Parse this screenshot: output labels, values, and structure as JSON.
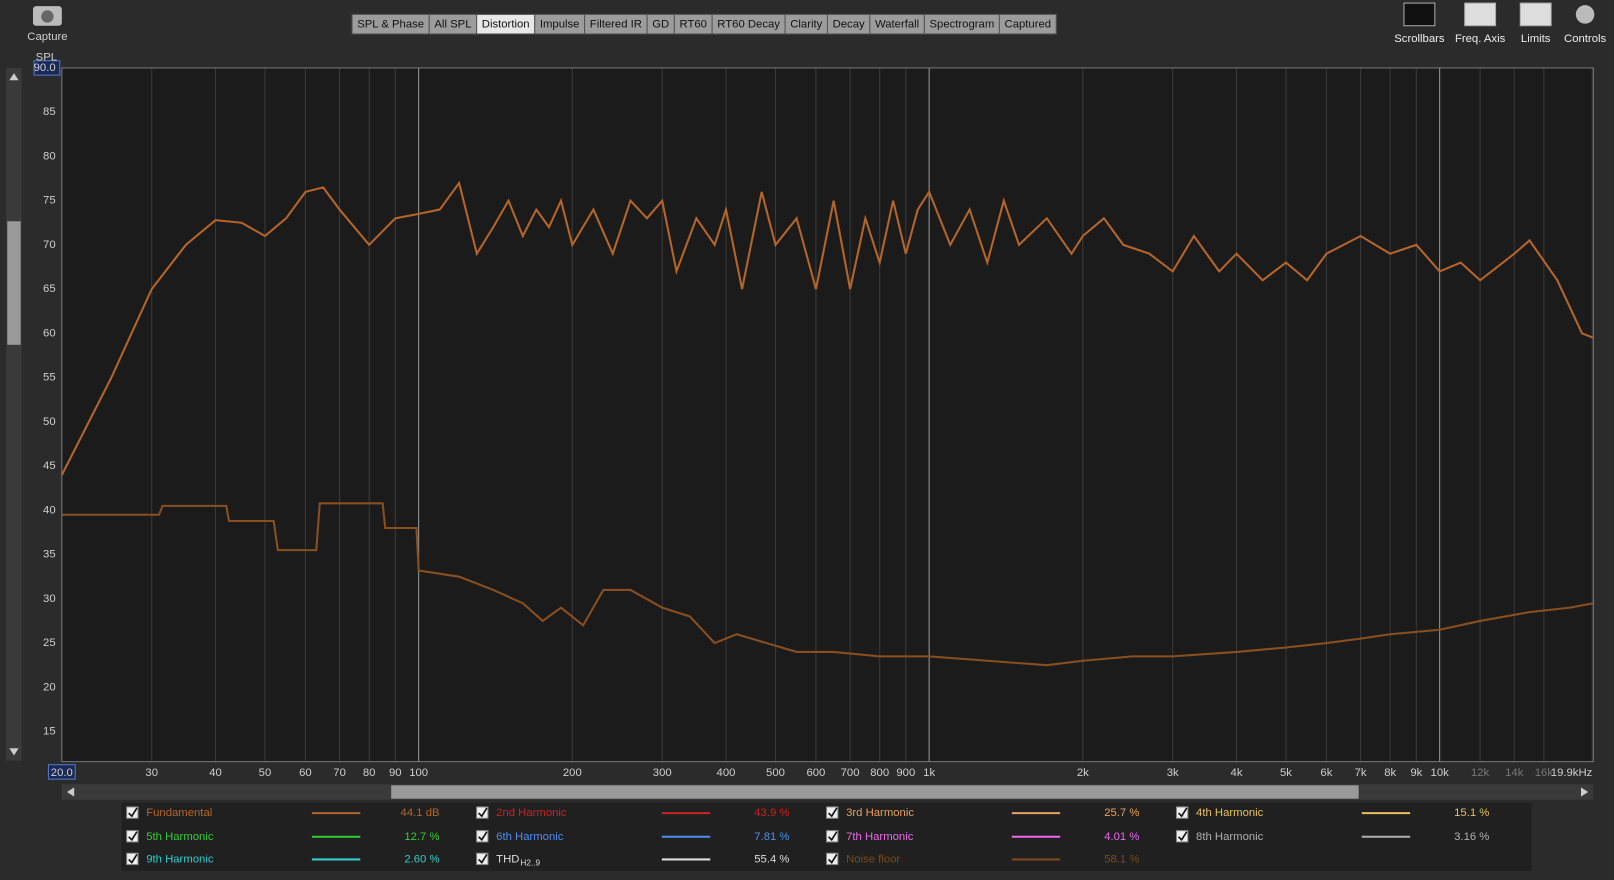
{
  "capture_label": "Capture",
  "tabs": [
    "SPL & Phase",
    "All SPL",
    "Distortion",
    "Impulse",
    "Filtered IR",
    "GD",
    "RT60",
    "RT60 Decay",
    "Clarity",
    "Decay",
    "Waterfall",
    "Spectrogram",
    "Captured"
  ],
  "active_tab": 2,
  "tools": [
    "Scrollbars",
    "Freq. Axis",
    "Limits",
    "Controls"
  ],
  "chart_data": {
    "type": "line",
    "y_label": "SPL",
    "x_scale": "log",
    "grid": true,
    "xlim": [
      20,
      20000
    ],
    "ylim": [
      11.6,
      90
    ],
    "yticks": [
      15,
      20,
      25,
      30,
      35,
      40,
      45,
      50,
      55,
      60,
      65,
      70,
      75,
      80,
      85,
      {
        "value": 90,
        "label": "90.0"
      }
    ],
    "xticks": [
      {
        "value": 20,
        "label": "20.0"
      },
      30,
      40,
      50,
      60,
      70,
      80,
      90,
      100,
      200,
      300,
      400,
      500,
      600,
      700,
      800,
      900,
      {
        "value": 1000,
        "label": "1k"
      },
      {
        "value": 2000,
        "label": "2k"
      },
      {
        "value": 3000,
        "label": "3k"
      },
      {
        "value": 4000,
        "label": "4k"
      },
      {
        "value": 5000,
        "label": "5k"
      },
      {
        "value": 6000,
        "label": "6k"
      },
      {
        "value": 7000,
        "label": "7k"
      },
      {
        "value": 8000,
        "label": "8k"
      },
      {
        "value": 9000,
        "label": "9k"
      },
      {
        "value": 10000,
        "label": "10k"
      },
      {
        "value": 12000,
        "label": "12k"
      },
      {
        "value": 14000,
        "label": "14k"
      },
      {
        "value": 16000,
        "label": "16k"
      },
      {
        "value": 19900,
        "label": "19.9kHz"
      }
    ],
    "series": [
      {
        "name": "Fundamental",
        "color": "#b5652a",
        "x": [
          20,
          25,
          30,
          35,
          40,
          45,
          50,
          55,
          60,
          65,
          70,
          80,
          90,
          100,
          110,
          120,
          130,
          140,
          150,
          160,
          170,
          180,
          190,
          200,
          220,
          240,
          260,
          280,
          300,
          320,
          350,
          380,
          400,
          430,
          470,
          500,
          550,
          600,
          650,
          700,
          750,
          800,
          850,
          900,
          950,
          1000,
          1100,
          1200,
          1300,
          1400,
          1500,
          1700,
          1900,
          2000,
          2200,
          2400,
          2700,
          3000,
          3300,
          3700,
          4000,
          4500,
          5000,
          5500,
          6000,
          7000,
          8000,
          9000,
          10000,
          11000,
          12000,
          14000,
          15000,
          17000,
          19000,
          20000
        ],
        "values": [
          44,
          55,
          65,
          70,
          72.8,
          72.5,
          71,
          73,
          76,
          76.5,
          74,
          70,
          73,
          73.5,
          74,
          77,
          69,
          72,
          75,
          71,
          74,
          72,
          75,
          70,
          74,
          69,
          75,
          73,
          75,
          67,
          73,
          70,
          74,
          65,
          76,
          70,
          73,
          65,
          75,
          65,
          73,
          68,
          75,
          69,
          74,
          76,
          70,
          74,
          68,
          75,
          70,
          73,
          69,
          71,
          73,
          70,
          69,
          67,
          71,
          67,
          69,
          66,
          68,
          66,
          69,
          71,
          69,
          70,
          67,
          68,
          66,
          69,
          70.5,
          66,
          60,
          59.5
        ]
      },
      {
        "name": "Noise floor",
        "color": "#8a4f1f",
        "x": [
          20,
          31,
          31.5,
          42,
          42.5,
          52,
          53,
          63,
          64,
          85,
          86,
          99,
          100,
          120,
          140,
          160,
          175,
          190,
          210,
          230,
          260,
          300,
          340,
          380,
          420,
          480,
          550,
          650,
          800,
          1000,
          1300,
          1700,
          2000,
          2500,
          3000,
          4000,
          5000,
          6000,
          7000,
          8000,
          10000,
          12000,
          15000,
          18000,
          20000
        ],
        "values": [
          39.5,
          39.5,
          40.5,
          40.5,
          38.8,
          38.8,
          35.5,
          35.5,
          40.8,
          40.8,
          38,
          38,
          33.2,
          32.5,
          31,
          29.5,
          27.5,
          29,
          27,
          31,
          31,
          29,
          28,
          25,
          26,
          25,
          24,
          24,
          23.5,
          23.5,
          23,
          22.5,
          23,
          23.5,
          23.5,
          24,
          24.5,
          25,
          25.5,
          26,
          26.5,
          27.5,
          28.5,
          29,
          29.5
        ]
      }
    ]
  },
  "legend": [
    {
      "label": "Fundamental",
      "color": "#b5652a",
      "reading": "44.1 dB"
    },
    {
      "label": "2nd Harmonic",
      "color": "#cc2222",
      "reading": "43.9 %"
    },
    {
      "label": "3rd Harmonic",
      "color": "#e8a060",
      "reading": "25.7 %"
    },
    {
      "label": "4th Harmonic",
      "color": "#e8c060",
      "reading": "15.1 %"
    },
    {
      "label": "5th Harmonic",
      "color": "#33cc33",
      "reading": "12.7 %"
    },
    {
      "label": "6th Harmonic",
      "color": "#4f8ef0",
      "reading": "7.81 %"
    },
    {
      "label": "7th Harmonic",
      "color": "#ee66ee",
      "reading": "4.01 %"
    },
    {
      "label": "8th Harmonic",
      "color": "#b0b0b0",
      "reading": "3.16 %"
    },
    {
      "label": "9th Harmonic",
      "color": "#33cccc",
      "reading": "2.60 %"
    },
    {
      "label": "THD",
      "sub": "H2..9",
      "color": "#dddddd",
      "reading": "55.4 %"
    },
    {
      "label": "Noise floor",
      "color": "#7a4a20",
      "reading": "58.1 %"
    }
  ]
}
